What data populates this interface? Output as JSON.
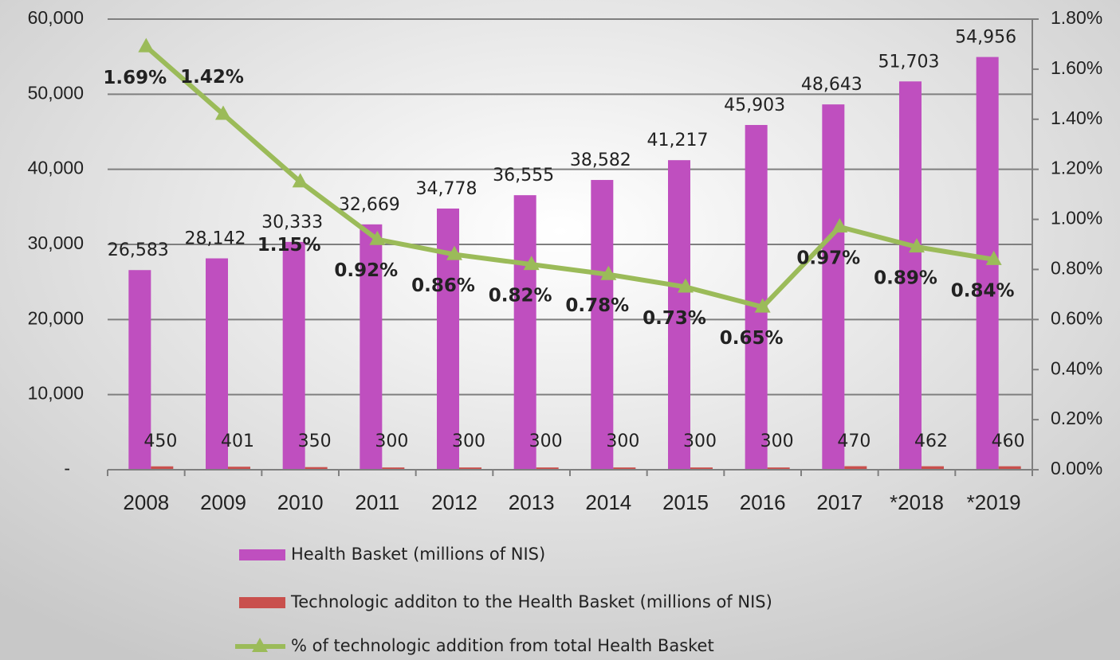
{
  "chart_data": {
    "type": "bar_line",
    "categories": [
      "2008",
      "2009",
      "2010",
      "2011",
      "2012",
      "2013",
      "2014",
      "2015",
      "2016",
      "2017",
      "*2018",
      "*2019"
    ],
    "series": [
      {
        "name": "Health Basket (millions of NIS)",
        "color": "#bf4fbf",
        "type": "bar",
        "values": [
          26583,
          28142,
          30333,
          32669,
          34778,
          36555,
          38582,
          41217,
          45903,
          48643,
          51703,
          54956
        ],
        "value_labels": [
          "26,583",
          "28,142",
          "30,333",
          "32,669",
          "34,778",
          "36,555",
          "38,582",
          "41,217",
          "45,903",
          "48,643",
          "51,703",
          "54,956"
        ]
      },
      {
        "name": "Technologic additon to the Health Basket (millions of NIS)",
        "color": "#c9504d",
        "type": "bar",
        "values": [
          450,
          401,
          350,
          300,
          300,
          300,
          300,
          300,
          300,
          470,
          462,
          460
        ]
      },
      {
        "name": "% of technologic addition from total Health Basket",
        "color": "#9bbb59",
        "type": "line",
        "axis": "y2",
        "values": [
          1.69,
          1.42,
          1.15,
          0.92,
          0.86,
          0.82,
          0.78,
          0.73,
          0.65,
          0.97,
          0.89,
          0.84
        ],
        "value_labels": [
          "1.69%",
          "1.42%",
          "1.15%",
          "0.92%",
          "0.86%",
          "0.82%",
          "0.78%",
          "0.73%",
          "0.65%",
          "0.97%",
          "0.89%",
          "0.84%"
        ]
      }
    ],
    "ylim": [
      0,
      60000
    ],
    "yticks": [
      {
        "value": 0,
        "label": "-"
      },
      {
        "value": 10000,
        "label": "10,000"
      },
      {
        "value": 20000,
        "label": "20,000"
      },
      {
        "value": 30000,
        "label": "30,000"
      },
      {
        "value": 40000,
        "label": "40,000"
      },
      {
        "value": 50000,
        "label": "50,000"
      },
      {
        "value": 60000,
        "label": "60,000"
      }
    ],
    "y2lim": [
      0,
      1.8
    ],
    "y2ticks": [
      {
        "value": 0,
        "label": "0.00%"
      },
      {
        "value": 0.2,
        "label": "0.20%"
      },
      {
        "value": 0.4,
        "label": "0.40%"
      },
      {
        "value": 0.6,
        "label": "0.60%"
      },
      {
        "value": 0.8,
        "label": "0.80%"
      },
      {
        "value": 1.0,
        "label": "1.00%"
      },
      {
        "value": 1.2,
        "label": "1.20%"
      },
      {
        "value": 1.4,
        "label": "1.40%"
      },
      {
        "value": 1.6,
        "label": "1.60%"
      },
      {
        "value": 1.8,
        "label": "1.80%"
      }
    ],
    "grid": true
  }
}
